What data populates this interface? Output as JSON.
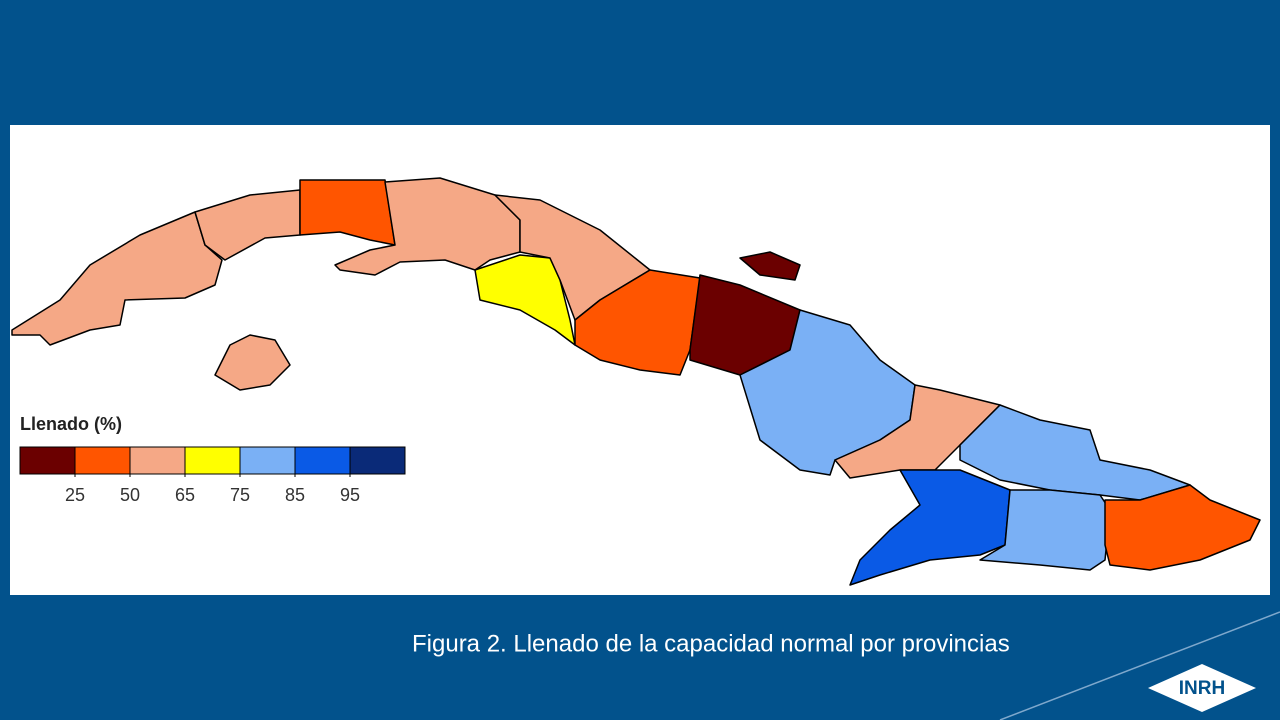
{
  "map": {
    "legend": {
      "title": "Llenado (%)",
      "colors": [
        "#6b0000",
        "#ff5500",
        "#f5a886",
        "#ffff00",
        "#7ab0f5",
        "#0a5ae6",
        "#0a2a78"
      ],
      "breaks": [
        25,
        50,
        65,
        75,
        85,
        95
      ]
    },
    "regions": [
      {
        "color": "#f5a886"
      },
      {
        "color": "#f5a886"
      },
      {
        "color": "#ff5500"
      },
      {
        "color": "#f5a886"
      },
      {
        "color": "#ffff00"
      },
      {
        "color": "#f5a886"
      },
      {
        "color": "#f5a886"
      },
      {
        "color": "#ff5500"
      },
      {
        "color": "#6b0000"
      },
      {
        "color": "#6b0000"
      },
      {
        "color": "#7ab0f5"
      },
      {
        "color": "#f5a886"
      },
      {
        "color": "#7ab0f5"
      },
      {
        "color": "#0a5ae6"
      },
      {
        "color": "#7ab0f5"
      },
      {
        "color": "#ff5500"
      }
    ]
  },
  "caption": "Figura 2. Llenado de la capacidad normal por provincias",
  "logo": "INRH"
}
